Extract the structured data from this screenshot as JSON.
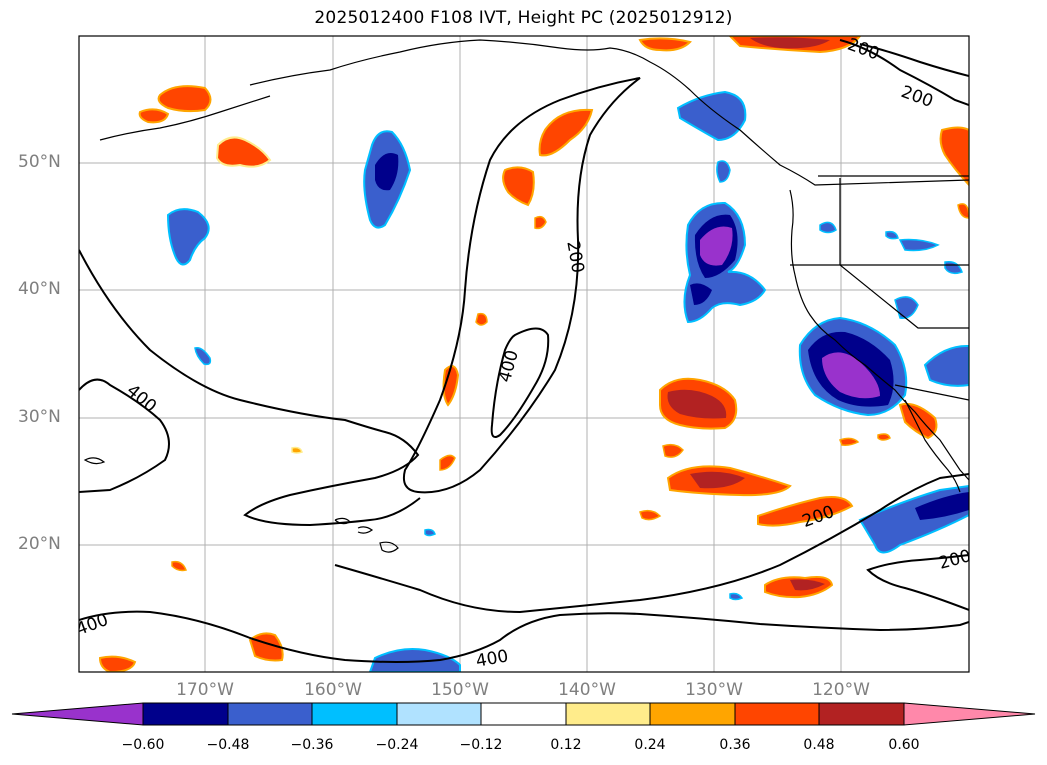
{
  "title": "2025012400 F108 IVT, Height PC (2025012912)",
  "lat_labels": [
    "50°N",
    "40°N",
    "30°N",
    "20°N"
  ],
  "lon_labels": [
    "170°W",
    "160°W",
    "150°W",
    "140°W",
    "130°W",
    "120°W"
  ],
  "contour_labels": [
    "200",
    "200",
    "200",
    "200",
    "200",
    "400",
    "400",
    "400",
    "400"
  ],
  "colorbar": {
    "colors": [
      "#9932cc",
      "#00008b",
      "#3a5fcd",
      "#00bfff",
      "#b0e2ff",
      "#ffffff",
      "#ffec8b",
      "#ffa500",
      "#ff4500",
      "#b22222",
      "#ff88aa"
    ],
    "ticks": [
      "−0.60",
      "−0.48",
      "−0.36",
      "−0.24",
      "−0.12",
      "0.12",
      "0.24",
      "0.36",
      "0.48",
      "0.60"
    ]
  },
  "colors": {
    "grid": "#b0b0b0",
    "label_gray": "#7f7f7f",
    "contour": "#000000"
  }
}
